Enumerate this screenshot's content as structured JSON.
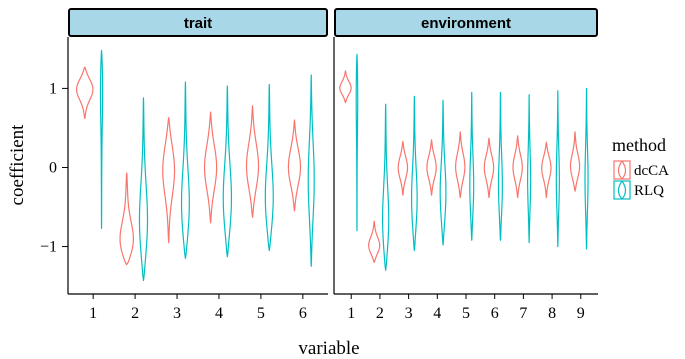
{
  "chart_data": {
    "type": "violin",
    "xlabel": "variable",
    "ylabel": "coefficient",
    "ylim": [
      -1.6,
      1.65
    ],
    "y_ticks": [
      -1,
      0,
      1
    ],
    "y_tick_labels": [
      "−1",
      "0",
      "1"
    ],
    "grid": false,
    "legend": {
      "title": "method",
      "position": "right",
      "entries": [
        {
          "name": "dcCA",
          "color": "#F8766D"
        },
        {
          "name": "RLQ",
          "color": "#00BFC4"
        }
      ]
    },
    "facets": [
      {
        "label": "trait",
        "categories": [
          "1",
          "2",
          "3",
          "4",
          "5",
          "6"
        ],
        "series": [
          {
            "name": "dcCA",
            "violins": [
              {
                "min": 0.62,
                "max": 1.27,
                "median": 1.0,
                "width": 0.55
              },
              {
                "min": -1.23,
                "max": -0.07,
                "median": -1.0,
                "width": 0.55
              },
              {
                "min": -0.95,
                "max": 0.63,
                "median": 0.0,
                "width": 0.4
              },
              {
                "min": -0.7,
                "max": 0.7,
                "median": 0.0,
                "width": 0.4
              },
              {
                "min": -0.63,
                "max": 0.78,
                "median": 0.0,
                "width": 0.4
              },
              {
                "min": -0.55,
                "max": 0.6,
                "median": 0.0,
                "width": 0.4
              }
            ]
          },
          {
            "name": "RLQ",
            "violins": [
              {
                "min": -0.77,
                "max": 1.48,
                "median": 1.2,
                "width": 0.1
              },
              {
                "min": -1.43,
                "max": 0.88,
                "median": -0.8,
                "width": 0.3
              },
              {
                "min": -1.15,
                "max": 1.08,
                "median": -0.6,
                "width": 0.3
              },
              {
                "min": -1.13,
                "max": 1.03,
                "median": -0.5,
                "width": 0.3
              },
              {
                "min": -1.05,
                "max": 1.05,
                "median": -0.5,
                "width": 0.3
              },
              {
                "min": -1.25,
                "max": 1.17,
                "median": -0.2,
                "width": 0.2
              }
            ]
          }
        ]
      },
      {
        "label": "environment",
        "categories": [
          "1",
          "2",
          "3",
          "4",
          "5",
          "6",
          "7",
          "8",
          "9"
        ],
        "series": [
          {
            "name": "dcCA",
            "violins": [
              {
                "min": 0.82,
                "max": 1.22,
                "median": 1.0,
                "width": 0.55
              },
              {
                "min": -1.2,
                "max": -0.68,
                "median": -1.0,
                "width": 0.55
              },
              {
                "min": -0.35,
                "max": 0.33,
                "median": 0.0,
                "width": 0.45
              },
              {
                "min": -0.35,
                "max": 0.35,
                "median": 0.0,
                "width": 0.45
              },
              {
                "min": -0.38,
                "max": 0.45,
                "median": 0.0,
                "width": 0.45
              },
              {
                "min": -0.38,
                "max": 0.37,
                "median": 0.0,
                "width": 0.45
              },
              {
                "min": -0.38,
                "max": 0.4,
                "median": 0.0,
                "width": 0.45
              },
              {
                "min": -0.38,
                "max": 0.32,
                "median": 0.0,
                "width": 0.45
              },
              {
                "min": -0.3,
                "max": 0.45,
                "median": 0.0,
                "width": 0.45
              }
            ]
          },
          {
            "name": "RLQ",
            "violins": [
              {
                "min": -0.8,
                "max": 1.43,
                "median": 1.1,
                "width": 0.1
              },
              {
                "min": -1.3,
                "max": 0.8,
                "median": -0.8,
                "width": 0.35
              },
              {
                "min": -1.05,
                "max": 0.9,
                "median": -0.5,
                "width": 0.3
              },
              {
                "min": -0.98,
                "max": 0.85,
                "median": -0.4,
                "width": 0.3
              },
              {
                "min": -0.92,
                "max": 0.95,
                "median": -0.3,
                "width": 0.2
              },
              {
                "min": -0.92,
                "max": 0.95,
                "median": -0.3,
                "width": 0.2
              },
              {
                "min": -0.95,
                "max": 0.92,
                "median": -0.2,
                "width": 0.15
              },
              {
                "min": -1.0,
                "max": 0.97,
                "median": -0.2,
                "width": 0.15
              },
              {
                "min": -1.03,
                "max": 1.0,
                "median": -0.2,
                "width": 0.15
              }
            ]
          }
        ]
      }
    ]
  }
}
